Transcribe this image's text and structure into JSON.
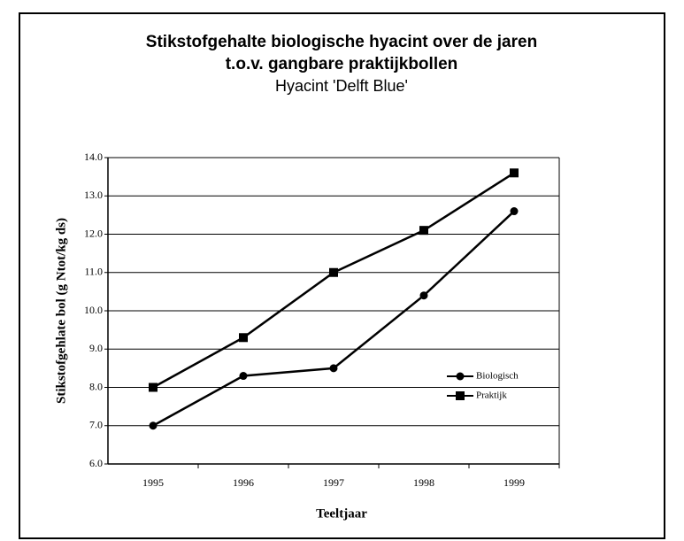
{
  "chart_data": {
    "type": "line",
    "title": "Stikstofgehalte biologische hyacint over de jaren",
    "title_line2": "t.o.v. gangbare praktijkbollen",
    "subtitle": "Hyacint 'Delft Blue'",
    "x_label": "Teeltjaar",
    "y_label": "Stikstofgehlate bol (g Ntot/kg ds)",
    "categories": [
      "1995",
      "1996",
      "1997",
      "1998",
      "1999"
    ],
    "series": [
      {
        "name": "Biologisch",
        "color": "#000000",
        "marker": "circle",
        "values": [
          7.0,
          8.3,
          8.5,
          10.4,
          12.6
        ]
      },
      {
        "name": "Praktijk",
        "color": "#000000",
        "marker": "square",
        "values": [
          8.0,
          9.3,
          11.0,
          12.1,
          13.6
        ]
      }
    ],
    "ylim": [
      6,
      14
    ],
    "yticks": [
      {
        "value": 6,
        "label": "6.0"
      },
      {
        "value": 7,
        "label": "7.0"
      },
      {
        "value": 8,
        "label": "8.0"
      },
      {
        "value": 9,
        "label": "9.0"
      },
      {
        "value": 10,
        "label": "10.0"
      },
      {
        "value": 11,
        "label": "11.0"
      },
      {
        "value": 12,
        "label": "12.0"
      },
      {
        "value": 13,
        "label": "13.0"
      },
      {
        "value": 14,
        "label": "14.0"
      }
    ],
    "grid": true,
    "legend": "right"
  }
}
